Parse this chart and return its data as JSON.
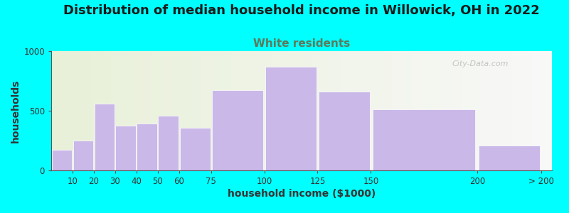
{
  "title": "Distribution of median household income in Willowick, OH in 2022",
  "subtitle": "White residents",
  "xlabel": "household income ($1000)",
  "ylabel": "households",
  "bar_labels": [
    "10",
    "20",
    "30",
    "40",
    "50",
    "60",
    "75",
    "100",
    "125",
    "150",
    "200",
    "> 200"
  ],
  "bar_values": [
    175,
    250,
    560,
    375,
    390,
    460,
    360,
    670,
    870,
    660,
    510,
    210
  ],
  "bar_color": "#c9b8e8",
  "bar_edgecolor": "#ffffff",
  "background_color": "#00ffff",
  "title_fontsize": 13,
  "subtitle_fontsize": 11,
  "subtitle_color": "#5c7a5c",
  "axis_label_fontsize": 10,
  "tick_fontsize": 8.5,
  "ylim": [
    0,
    1000
  ],
  "yticks": [
    0,
    500,
    1000
  ],
  "watermark": "City-Data.com"
}
